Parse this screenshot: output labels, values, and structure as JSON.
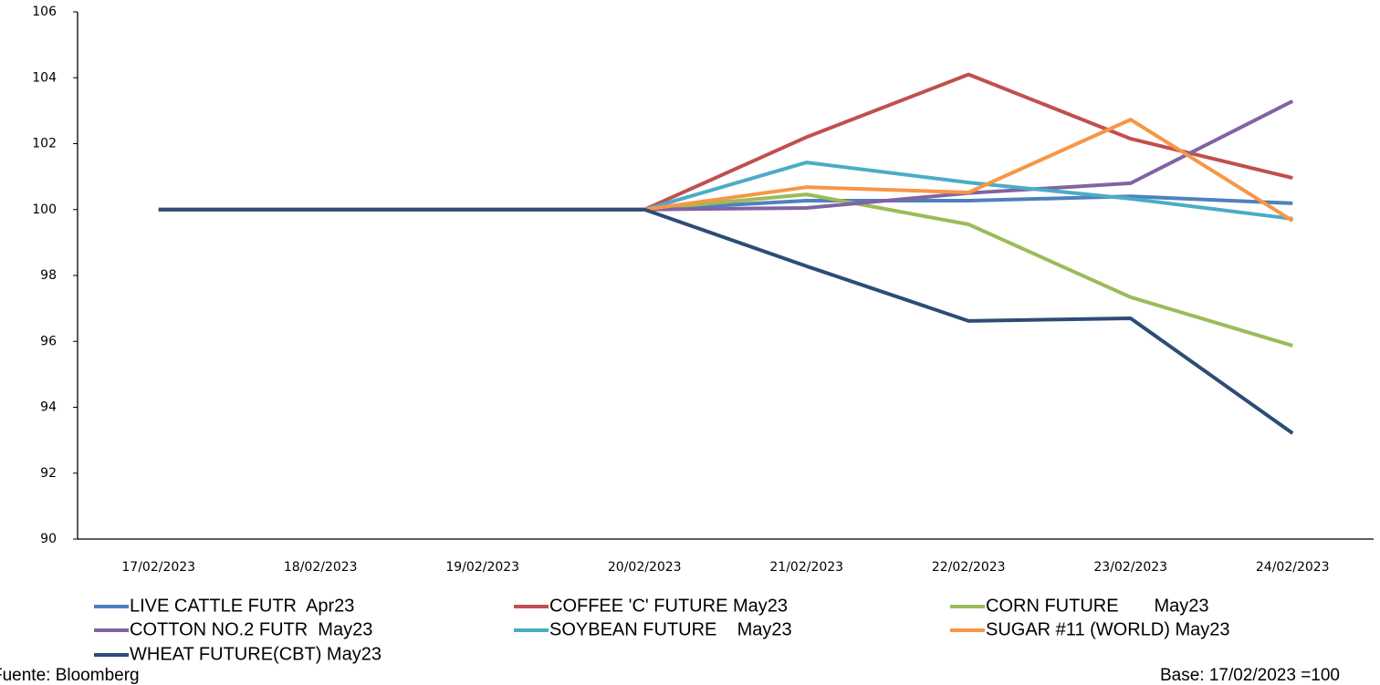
{
  "chart_data": {
    "type": "line",
    "categories": [
      "17/02/2023",
      "18/02/2023",
      "19/02/2023",
      "20/02/2023",
      "21/02/2023",
      "22/02/2023",
      "23/02/2023",
      "24/02/2023"
    ],
    "series": [
      {
        "name": "LIVE CATTLE FUTR  Apr23",
        "color": "#4f81bd",
        "values": [
          100,
          100,
          100,
          100,
          100.27,
          100.27,
          100.4,
          100.19
        ]
      },
      {
        "name": "COFFEE 'C' FUTURE May23",
        "color": "#c0504d",
        "values": [
          100,
          100,
          100,
          100,
          102.2,
          104.1,
          102.15,
          100.96
        ]
      },
      {
        "name": "CORN FUTURE       May23",
        "color": "#9bbb59",
        "values": [
          100,
          100,
          100,
          100,
          100.46,
          99.55,
          97.34,
          95.87
        ]
      },
      {
        "name": "COTTON NO.2 FUTR  May23",
        "color": "#8064a2",
        "values": [
          100,
          100,
          100,
          100,
          100.05,
          100.5,
          100.8,
          103.29
        ]
      },
      {
        "name": "SOYBEAN FUTURE    May23",
        "color": "#4bacc6",
        "values": [
          100,
          100,
          100,
          100,
          101.43,
          100.82,
          100.33,
          99.72
        ]
      },
      {
        "name": "SUGAR #11 (WORLD) May23",
        "color": "#f79646",
        "values": [
          100,
          100,
          100,
          100,
          100.68,
          100.52,
          102.73,
          99.66
        ]
      },
      {
        "name": "WHEAT FUTURE(CBT) May23",
        "color": "#2c4d75",
        "values": [
          100,
          100,
          100,
          100,
          98.28,
          96.62,
          96.7,
          93.21
        ]
      }
    ],
    "ylim": [
      90,
      106
    ],
    "yticks": [
      90,
      92,
      94,
      96,
      98,
      100,
      102,
      104,
      106
    ],
    "grid": false,
    "source": "Fuente: Bloomberg",
    "note": "Base: 17/02/2023 =100"
  }
}
